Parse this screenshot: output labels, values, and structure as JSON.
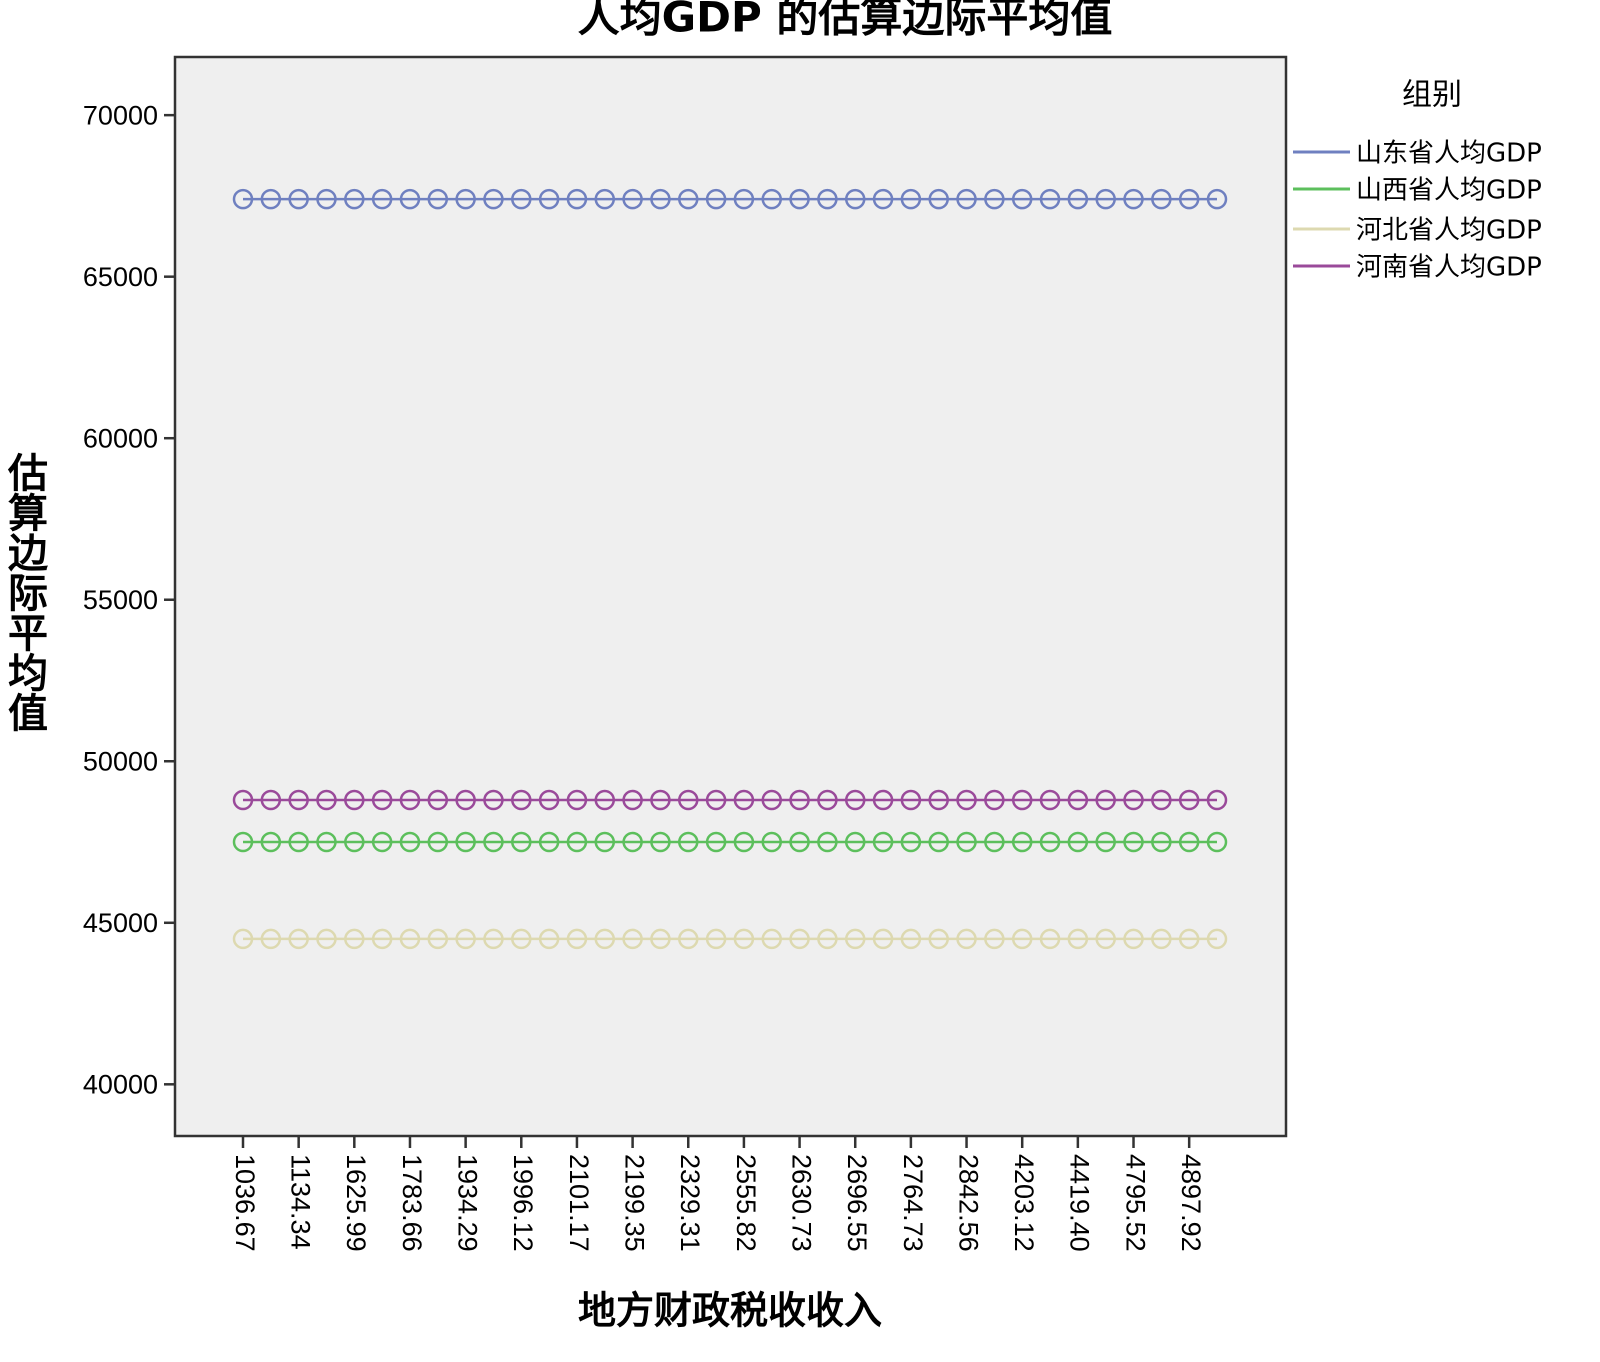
{
  "chart_data": {
    "type": "line",
    "title": "人均GDP 的估算边际平均值",
    "x_label": "地方财政税收收入",
    "y_label": "估算边际平均值",
    "legend_title": "组别",
    "legend_position": "right",
    "categories": [
      "1036.67",
      null,
      "1134.34",
      null,
      "1625.99",
      null,
      "1783.66",
      null,
      "1934.29",
      null,
      "1996.12",
      null,
      "2101.17",
      null,
      "2199.35",
      null,
      "2329.31",
      null,
      "2555.82",
      null,
      "2630.73",
      null,
      "2696.55",
      null,
      "2764.73",
      null,
      "2842.56",
      null,
      "4203.12",
      null,
      "4419.40",
      null,
      "4795.52",
      null,
      "4897.92",
      null
    ],
    "series": [
      {
        "name": "山东省人均GDP",
        "color": "#6f80c0",
        "values": [
          67400,
          67400,
          67400,
          67400,
          67400,
          67400,
          67400,
          67400,
          67400,
          67400,
          67400,
          67400,
          67400,
          67400,
          67400,
          67400,
          67400,
          67400,
          67400,
          67400,
          67400,
          67400,
          67400,
          67400,
          67400,
          67400,
          67400,
          67400,
          67400,
          67400,
          67400,
          67400,
          67400,
          67400,
          67400,
          67400
        ]
      },
      {
        "name": "山西省人均GDP",
        "color": "#5cbf5c",
        "values": [
          47500,
          47500,
          47500,
          47500,
          47500,
          47500,
          47500,
          47500,
          47500,
          47500,
          47500,
          47500,
          47500,
          47500,
          47500,
          47500,
          47500,
          47500,
          47500,
          47500,
          47500,
          47500,
          47500,
          47500,
          47500,
          47500,
          47500,
          47500,
          47500,
          47500,
          47500,
          47500,
          47500,
          47500,
          47500,
          47500
        ]
      },
      {
        "name": "河北省人均GDP",
        "color": "#ddd9b0",
        "values": [
          44500,
          44500,
          44500,
          44500,
          44500,
          44500,
          44500,
          44500,
          44500,
          44500,
          44500,
          44500,
          44500,
          44500,
          44500,
          44500,
          44500,
          44500,
          44500,
          44500,
          44500,
          44500,
          44500,
          44500,
          44500,
          44500,
          44500,
          44500,
          44500,
          44500,
          44500,
          44500,
          44500,
          44500,
          44500,
          44500
        ]
      },
      {
        "name": "河南省人均GDP",
        "color": "#9a4a9a",
        "values": [
          48800,
          48800,
          48800,
          48800,
          48800,
          48800,
          48800,
          48800,
          48800,
          48800,
          48800,
          48800,
          48800,
          48800,
          48800,
          48800,
          48800,
          48800,
          48800,
          48800,
          48800,
          48800,
          48800,
          48800,
          48800,
          48800,
          48800,
          48800,
          48800,
          48800,
          48800,
          48800,
          48800,
          48800,
          48800,
          48800
        ]
      }
    ],
    "ylim": [
      38400,
      71800
    ],
    "yticks": [
      40000,
      45000,
      50000,
      55000,
      60000,
      65000,
      70000
    ],
    "markers": true
  }
}
